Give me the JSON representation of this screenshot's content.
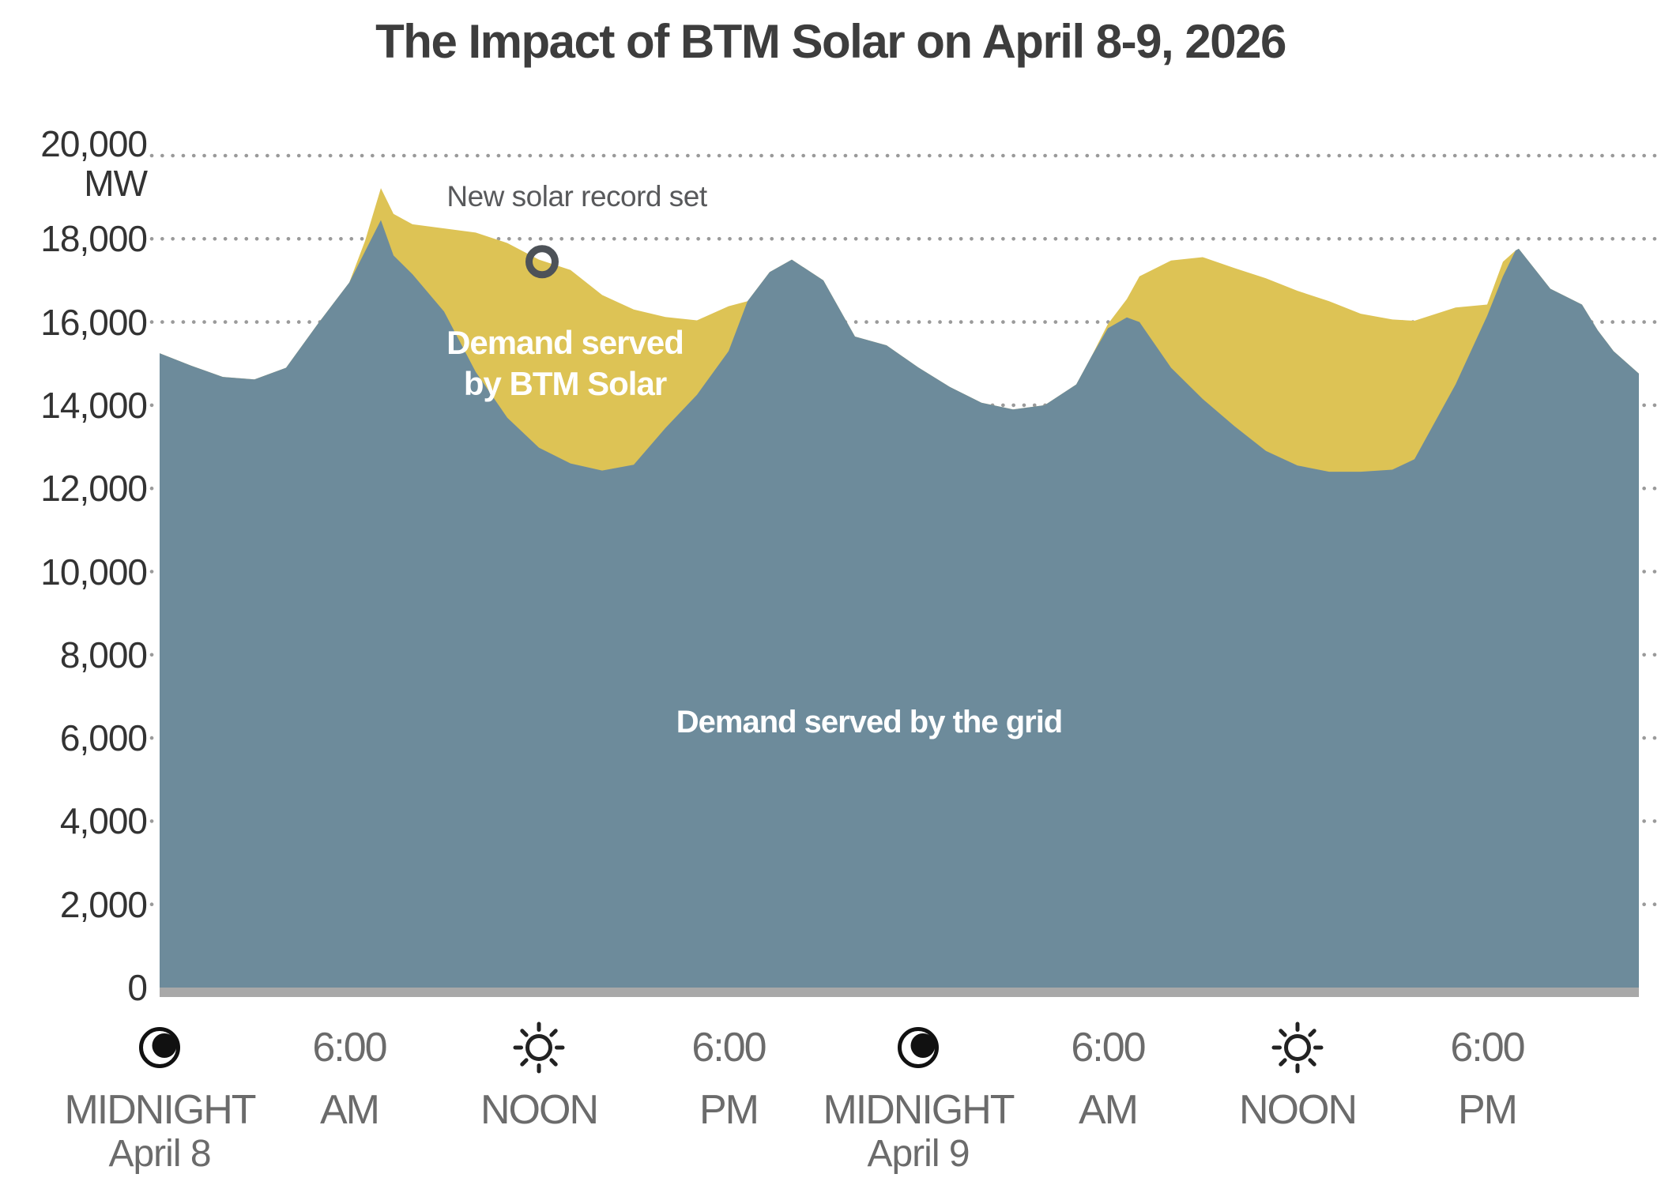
{
  "title": "The Impact of BTM Solar on April 8-9, 2026",
  "annotation": {
    "text": "New solar record set",
    "at_hour": 12.1,
    "at_mw": 17450
  },
  "area_labels": {
    "solar_line1": "Demand served",
    "solar_line2": "by BTM Solar",
    "grid": "Demand served by the grid"
  },
  "y_axis": {
    "unit": "MW",
    "ticks": [
      {
        "value": 20000,
        "label": "20,000"
      },
      {
        "value": 18000,
        "label": "18,000"
      },
      {
        "value": 16000,
        "label": "16,000"
      },
      {
        "value": 14000,
        "label": "14,000"
      },
      {
        "value": 12000,
        "label": "12,000"
      },
      {
        "value": 10000,
        "label": "10,000"
      },
      {
        "value": 8000,
        "label": "8,000"
      },
      {
        "value": 6000,
        "label": "6,000"
      },
      {
        "value": 4000,
        "label": "4,000"
      },
      {
        "value": 2000,
        "label": "2,000"
      },
      {
        "value": 0,
        "label": "0"
      }
    ]
  },
  "x_axis": {
    "ticks": [
      {
        "hour": 0,
        "icon": "moon-icon",
        "time": "",
        "label": "MIDNIGHT",
        "sublabel": "April 8"
      },
      {
        "hour": 6,
        "icon": "",
        "time": "6:00",
        "label": "AM",
        "sublabel": ""
      },
      {
        "hour": 12,
        "icon": "sun-icon",
        "time": "",
        "label": "NOON",
        "sublabel": ""
      },
      {
        "hour": 18,
        "icon": "",
        "time": "6:00",
        "label": "PM",
        "sublabel": ""
      },
      {
        "hour": 24,
        "icon": "moon-icon",
        "time": "",
        "label": "MIDNIGHT",
        "sublabel": "April 9"
      },
      {
        "hour": 30,
        "icon": "",
        "time": "6:00",
        "label": "AM",
        "sublabel": ""
      },
      {
        "hour": 36,
        "icon": "sun-icon",
        "time": "",
        "label": "NOON",
        "sublabel": ""
      },
      {
        "hour": 42,
        "icon": "",
        "time": "6:00",
        "label": "PM",
        "sublabel": ""
      }
    ]
  },
  "colors": {
    "grid_area": "#6d8b9b",
    "solar_area": "#ddc355",
    "gridline": "#9a9a9a",
    "baseline": "#a8a8a8",
    "title_text": "#3d3d3d",
    "x_label_text": "#6b6b6b",
    "y_label_text": "#333333",
    "annotation_text": "#58595b",
    "record_circle": "#4d5258",
    "area_label_text": "#ffffff"
  },
  "chart_data": {
    "type": "area",
    "stacked": true,
    "title": "The Impact of BTM Solar on April 8-9, 2026",
    "ylabel": "MW",
    "ylim": [
      0,
      20000
    ],
    "gridlines_mw": [
      20000,
      18000,
      16000,
      14000,
      12000,
      10000,
      8000,
      6000,
      4000,
      2000
    ],
    "x_unit": "hours from midnight April 8",
    "xlim": [
      0,
      46.8
    ],
    "x_tick_hours": [
      0,
      6,
      12,
      18,
      24,
      30,
      36,
      42
    ],
    "x_tick_labels": [
      "MIDNIGHT April 8",
      "6:00 AM",
      "NOON",
      "6:00 PM",
      "MIDNIGHT April 9",
      "6:00 AM",
      "NOON",
      "6:00 PM"
    ],
    "legend_position": "labels inside areas",
    "hours": [
      0,
      1,
      2,
      3,
      4,
      5,
      6,
      6.5,
      7,
      7.4,
      8,
      9,
      10,
      11,
      12,
      13,
      14,
      15,
      16,
      17,
      18,
      18.6,
      19.3,
      20,
      21,
      22,
      23,
      24,
      25,
      26,
      27,
      28,
      29,
      29.5,
      30,
      30.6,
      31,
      32,
      33,
      34,
      35,
      36,
      37,
      38,
      39,
      39.7,
      41,
      42,
      42.5,
      42.9,
      43,
      44,
      45,
      45.5,
      46,
      46.8
    ],
    "series": [
      {
        "name": "Demand served by the grid",
        "color": "#6d8b9b",
        "values_mw": [
          15250,
          14950,
          14680,
          14620,
          14900,
          15950,
          16950,
          17700,
          18450,
          17600,
          17150,
          16250,
          14800,
          13700,
          12980,
          12600,
          12430,
          12570,
          13450,
          14250,
          15300,
          16500,
          17200,
          17500,
          17000,
          15650,
          15440,
          14910,
          14440,
          14060,
          13900,
          14000,
          14500,
          15200,
          15850,
          16110,
          16000,
          14900,
          14150,
          13500,
          12900,
          12550,
          12400,
          12400,
          12450,
          12700,
          14500,
          16150,
          17100,
          17720,
          17760,
          16800,
          16420,
          15800,
          15300,
          14760
        ]
      },
      {
        "name": "Demand served by BTM Solar",
        "color": "#ddc355",
        "values_mw": [
          0,
          0,
          0,
          0,
          0,
          0,
          0,
          250,
          770,
          1000,
          1200,
          2000,
          3350,
          4200,
          4520,
          4650,
          4220,
          3730,
          2670,
          1790,
          1080,
          0,
          0,
          0,
          0,
          0,
          0,
          0,
          0,
          0,
          0,
          0,
          0,
          0,
          100,
          440,
          1100,
          2580,
          3410,
          3800,
          4150,
          4200,
          4100,
          3800,
          3610,
          3330,
          1850,
          270,
          350,
          0,
          0,
          0,
          0,
          0,
          0,
          0
        ]
      }
    ],
    "total_demand_mw": [
      15250,
      14950,
      14680,
      14620,
      14900,
      15950,
      16950,
      17950,
      19220,
      18600,
      18350,
      18250,
      18150,
      17900,
      17500,
      17250,
      16650,
      16300,
      16120,
      16040,
      16380,
      16500,
      17200,
      17500,
      17000,
      15650,
      15440,
      14910,
      14440,
      14060,
      13900,
      14000,
      14500,
      15200,
      15950,
      16550,
      17100,
      17480,
      17560,
      17300,
      17050,
      16750,
      16500,
      16200,
      16060,
      16030,
      16350,
      16420,
      17450,
      17720,
      17760,
      16800,
      16420,
      15800,
      15300,
      14760
    ]
  }
}
